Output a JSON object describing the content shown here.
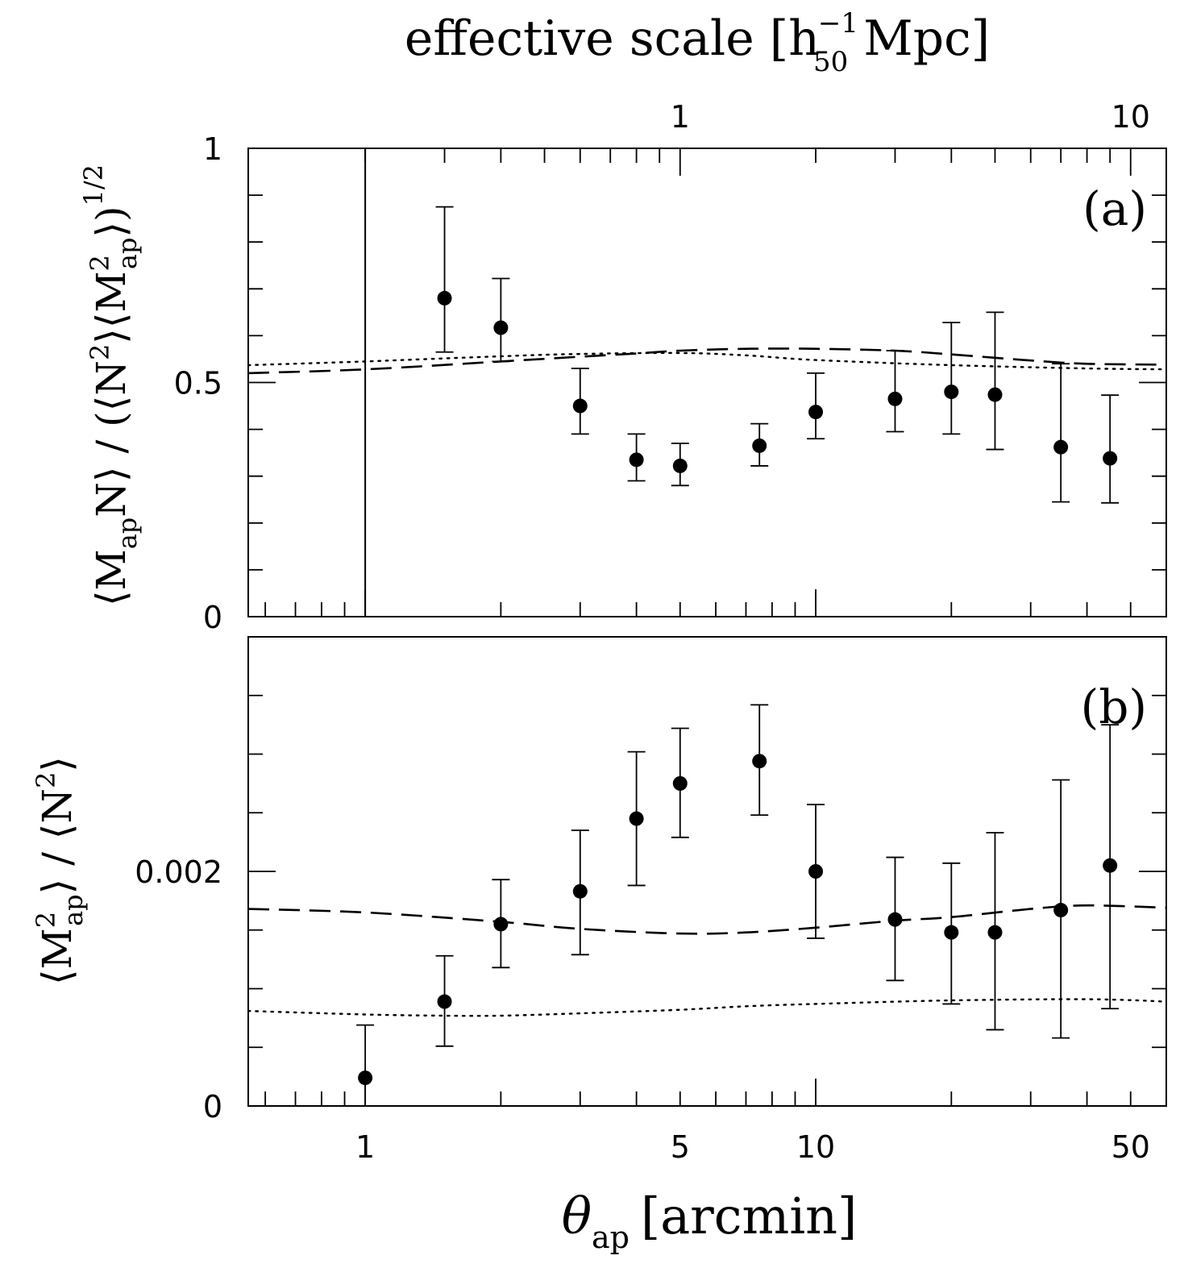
{
  "chart_data": [
    {
      "type": "scatter",
      "panel_label": "(a)",
      "title": "",
      "xlabel_symbol": "θ",
      "xlabel_sub": "ap",
      "xlabel_unit": "[arcmin]",
      "xscale": "log",
      "xlim": [
        0.55,
        60
      ],
      "ylim": [
        0,
        1
      ],
      "yticks_major": [
        0,
        0.5,
        1
      ],
      "ytick_labels": [
        "0",
        "0.5",
        "1"
      ],
      "yticks_minor": [
        0.1,
        0.2,
        0.3,
        0.4,
        0.6,
        0.7,
        0.8,
        0.9
      ],
      "ylabel_parts": [
        "⟨M",
        "ap",
        "N⟩ / (⟨N",
        "2",
        "⟩⟨M",
        "2",
        "ap",
        "⟩)",
        "1/2"
      ],
      "top_axis": {
        "label": "effective scale",
        "unit_open": "[h",
        "unit_sup": "−1",
        "unit_sub": "50",
        "unit_close": " Mpc]",
        "ticks": [
          {
            "value": 1,
            "label": "1"
          },
          {
            "value": 10,
            "label": "10"
          }
        ]
      },
      "series": [
        {
          "name": "data",
          "style": "points",
          "x": [
            1.5,
            2,
            3,
            4,
            5,
            7.5,
            10,
            15,
            20,
            25,
            35,
            45
          ],
          "y": [
            0.68,
            0.617,
            0.45,
            0.335,
            0.322,
            0.365,
            0.437,
            0.465,
            0.48,
            0.474,
            0.362,
            0.338
          ],
          "yerr_low": [
            0.565,
            0.545,
            0.39,
            0.29,
            0.28,
            0.322,
            0.38,
            0.395,
            0.39,
            0.357,
            0.245,
            0.243
          ],
          "yerr_high": [
            0.875,
            0.722,
            0.53,
            0.39,
            0.37,
            0.412,
            0.52,
            0.568,
            0.628,
            0.65,
            0.54,
            0.473
          ]
        },
        {
          "name": "model-dashed",
          "style": "dashed",
          "x": [
            0.55,
            1,
            2,
            3,
            4,
            5,
            7,
            10,
            15,
            20,
            30,
            40,
            60
          ],
          "y": [
            0.52,
            0.528,
            0.545,
            0.555,
            0.562,
            0.568,
            0.572,
            0.572,
            0.568,
            0.56,
            0.547,
            0.54,
            0.538
          ]
        },
        {
          "name": "model-dotted",
          "style": "dotted",
          "x": [
            0.55,
            1,
            2,
            3,
            5,
            7,
            10,
            20,
            40,
            60
          ],
          "y": [
            0.537,
            0.545,
            0.556,
            0.561,
            0.563,
            0.558,
            0.548,
            0.537,
            0.53,
            0.528
          ]
        }
      ],
      "vertical_line_x": 1
    },
    {
      "type": "scatter",
      "panel_label": "(b)",
      "title": "",
      "xlabel_symbol": "θ",
      "xlabel_sub": "ap",
      "xlabel_unit": "[arcmin]",
      "xscale": "log",
      "xlim": [
        0.55,
        60
      ],
      "ylim": [
        0,
        0.004
      ],
      "yticks_major": [
        0,
        0.002,
        0.004
      ],
      "ytick_labels": [
        "0",
        "0.002"
      ],
      "yticks_minor": [
        0.0005,
        0.001,
        0.0015,
        0.0025,
        0.003,
        0.0035
      ],
      "xtick_labels": [
        {
          "value": 1,
          "label": "1"
        },
        {
          "value": 5,
          "label": "5"
        },
        {
          "value": 10,
          "label": "10"
        },
        {
          "value": 50,
          "label": "50"
        }
      ],
      "ylabel_parts": [
        "⟨M",
        "2",
        "ap",
        "⟩ / ⟨N",
        "2",
        "⟩"
      ],
      "series": [
        {
          "name": "data",
          "style": "points",
          "x": [
            1,
            1.5,
            2,
            3,
            4,
            5,
            7.5,
            10,
            15,
            20,
            25,
            35,
            45
          ],
          "y": [
            0.00024,
            0.00089,
            0.00155,
            0.00183,
            0.00245,
            0.00275,
            0.00294,
            0.002,
            0.00159,
            0.00148,
            0.00148,
            0.00167,
            0.00205
          ],
          "yerr_low": [
            0,
            0.00051,
            0.00118,
            0.00129,
            0.00188,
            0.00229,
            0.00248,
            0.00143,
            0.00107,
            0.00087,
            0.00065,
            0.00058,
            0.00083
          ],
          "yerr_high": [
            0.00069,
            0.00128,
            0.00193,
            0.00235,
            0.00302,
            0.00322,
            0.00342,
            0.00257,
            0.00212,
            0.00207,
            0.00233,
            0.00278,
            0.00325
          ]
        },
        {
          "name": "model-dashed",
          "style": "dashed",
          "x": [
            0.55,
            1,
            2,
            3,
            5,
            7,
            10,
            15,
            20,
            30,
            40,
            60
          ],
          "y": [
            0.00168,
            0.00165,
            0.00157,
            0.00151,
            0.00147,
            0.00148,
            0.00152,
            0.00158,
            0.00161,
            0.00168,
            0.00171,
            0.00169
          ]
        },
        {
          "name": "model-dotted",
          "style": "dotted",
          "x": [
            0.55,
            1,
            1.5,
            2,
            3,
            5,
            7,
            10,
            20,
            40,
            60
          ],
          "y": [
            0.00081,
            0.00078,
            0.00077,
            0.00077,
            0.00079,
            0.00082,
            0.00085,
            0.00087,
            0.0009,
            0.00091,
            0.00089
          ]
        }
      ]
    }
  ]
}
